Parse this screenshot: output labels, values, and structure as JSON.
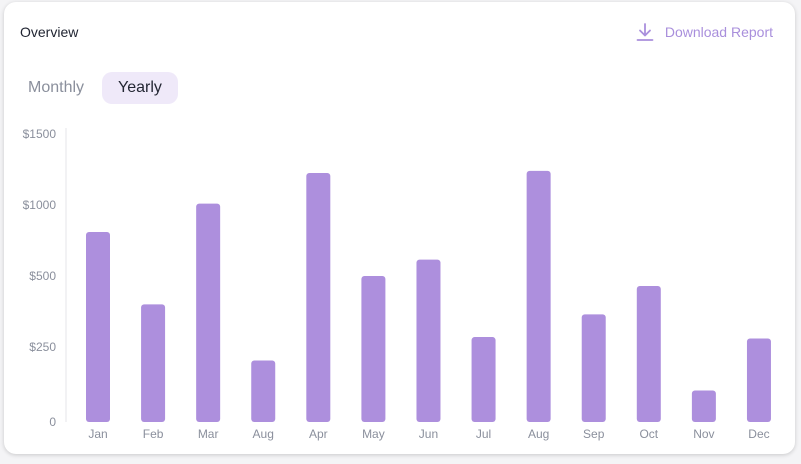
{
  "header": {
    "title": "Overview",
    "download_label": "Download Report"
  },
  "tabs": [
    {
      "label": "Monthly",
      "active": false
    },
    {
      "label": "Yearly",
      "active": true
    }
  ],
  "colors": {
    "bar": "#ad8fdd",
    "accent": "#a98fdc",
    "tab_active_bg": "#efe9f9"
  },
  "chart_data": {
    "type": "bar",
    "categories": [
      "Jan",
      "Feb",
      "Mar",
      "Aug",
      "Apr",
      "May",
      "Jun",
      "Jul",
      "Aug",
      "Sep",
      "Oct",
      "Nov",
      "Dec"
    ],
    "values": [
      810,
      400,
      1010,
      205,
      1225,
      500,
      615,
      285,
      1240,
      365,
      465,
      105,
      280
    ],
    "yticks": [
      {
        "label": "0",
        "value": 0
      },
      {
        "label": "$250",
        "value": 250
      },
      {
        "label": "$500",
        "value": 500
      },
      {
        "label": "$1000",
        "value": 1000
      },
      {
        "label": "$1500",
        "value": 1500
      }
    ],
    "grid": false,
    "legend": "none"
  }
}
